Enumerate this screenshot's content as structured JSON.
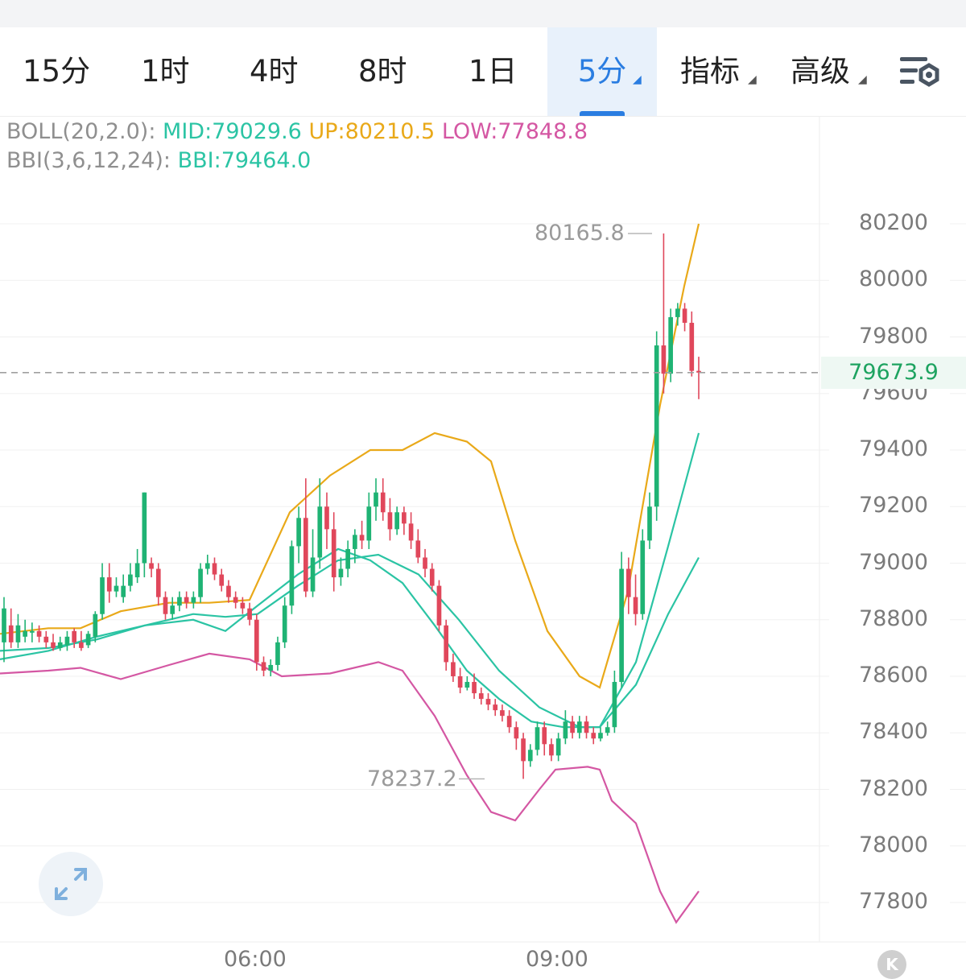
{
  "tabs": [
    {
      "label": "15分",
      "selected": false
    },
    {
      "label": "1时",
      "selected": false
    },
    {
      "label": "4时",
      "selected": false
    },
    {
      "label": "8时",
      "selected": false
    },
    {
      "label": "1日",
      "selected": false
    },
    {
      "label": "5分",
      "selected": true,
      "dropdown": true
    },
    {
      "label": "指标",
      "selected": false,
      "dropdown": true
    },
    {
      "label": "高级",
      "selected": false,
      "dropdown": true
    }
  ],
  "settings_icon": "chart-settings-icon",
  "legend": {
    "boll_name": "BOLL(20,2.0):",
    "mid": "MID:79029.6",
    "up": "UP:80210.5",
    "low": "LOW:77848.8",
    "bbi_name": "BBI(3,6,12,24):",
    "bbi": "BBI:79464.0"
  },
  "colors": {
    "up_candle": "#1fb374",
    "down_candle": "#e0475b",
    "boll_mid": "#2bc4a4",
    "boll_up": "#e9a919",
    "boll_low": "#d457a3",
    "bbi": "#2bc4a4",
    "accent": "#2a7de1"
  },
  "current_price": "79673.9",
  "high_marker": "80165.8",
  "low_marker": "78237.2",
  "chart_data": {
    "type": "candlestick",
    "interval": "5分",
    "y_ticks": [
      "80200",
      "80000",
      "79800",
      "79600",
      "79400",
      "79200",
      "79000",
      "78800",
      "78600",
      "78400",
      "78200",
      "78000",
      "77800"
    ],
    "ylim": [
      77670,
      80440
    ],
    "x_ticks": [
      "06:00",
      "09:00"
    ],
    "grid": true,
    "candles": [
      [
        78720,
        78840,
        78650,
        78880
      ],
      [
        78780,
        78720,
        78700,
        78840
      ],
      [
        78720,
        78780,
        78700,
        78820
      ],
      [
        78740,
        78760,
        78720,
        78800
      ],
      [
        78760,
        78760,
        78720,
        78790
      ],
      [
        78760,
        78740,
        78720,
        78780
      ],
      [
        78740,
        78720,
        78700,
        78760
      ],
      [
        78720,
        78700,
        78690,
        78750
      ],
      [
        78700,
        78720,
        78690,
        78740
      ],
      [
        78710,
        78740,
        78690,
        78760
      ],
      [
        78760,
        78720,
        78700,
        78770
      ],
      [
        78720,
        78700,
        78690,
        78760
      ],
      [
        78710,
        78750,
        78700,
        78760
      ],
      [
        78740,
        78820,
        78720,
        78830
      ],
      [
        78820,
        78950,
        78800,
        79000
      ],
      [
        78950,
        78900,
        78860,
        79000
      ],
      [
        78900,
        78920,
        78880,
        78950
      ],
      [
        78880,
        78920,
        78860,
        78960
      ],
      [
        78920,
        78960,
        78900,
        79000
      ],
      [
        78950,
        79000,
        78930,
        79050
      ],
      [
        79000,
        79250,
        78950,
        79250
      ],
      [
        79000,
        78980,
        78950,
        79020
      ],
      [
        78980,
        78880,
        78850,
        79000
      ],
      [
        78880,
        78820,
        78800,
        78900
      ],
      [
        78820,
        78850,
        78800,
        78880
      ],
      [
        78850,
        78880,
        78830,
        78900
      ],
      [
        78880,
        78860,
        78840,
        78900
      ],
      [
        78860,
        78880,
        78840,
        78900
      ],
      [
        78880,
        78980,
        78860,
        79000
      ],
      [
        78980,
        79000,
        78960,
        79030
      ],
      [
        79000,
        78960,
        78940,
        79020
      ],
      [
        78960,
        78920,
        78900,
        78980
      ],
      [
        78920,
        78880,
        78860,
        78940
      ],
      [
        78880,
        78860,
        78840,
        78900
      ],
      [
        78860,
        78840,
        78820,
        78880
      ],
      [
        78840,
        78800,
        78780,
        78860
      ],
      [
        78800,
        78650,
        78620,
        78820
      ],
      [
        78650,
        78620,
        78600,
        78670
      ],
      [
        78620,
        78640,
        78600,
        78660
      ],
      [
        78640,
        78720,
        78620,
        78740
      ],
      [
        78720,
        78850,
        78700,
        78880
      ],
      [
        78850,
        79060,
        78820,
        79080
      ],
      [
        79060,
        79160,
        79000,
        79200
      ],
      [
        79160,
        78900,
        78880,
        79300
      ],
      [
        78900,
        79020,
        78880,
        79120
      ],
      [
        79020,
        79200,
        78980,
        79300
      ],
      [
        79200,
        79120,
        79050,
        79250
      ],
      [
        79120,
        78950,
        78900,
        79180
      ],
      [
        78950,
        78980,
        78920,
        79020
      ],
      [
        78980,
        79050,
        78950,
        79080
      ],
      [
        79050,
        79100,
        79000,
        79120
      ],
      [
        79100,
        79080,
        79050,
        79150
      ],
      [
        79080,
        79200,
        79050,
        79250
      ],
      [
        79200,
        79250,
        79150,
        79300
      ],
      [
        79250,
        79180,
        79150,
        79300
      ],
      [
        79180,
        79120,
        79080,
        79230
      ],
      [
        79120,
        79180,
        79100,
        79200
      ],
      [
        79180,
        79140,
        79100,
        79200
      ],
      [
        79140,
        79080,
        79050,
        79180
      ],
      [
        79080,
        79020,
        79000,
        79120
      ],
      [
        79020,
        78980,
        78950,
        79050
      ],
      [
        78980,
        78920,
        78900,
        79000
      ],
      [
        78920,
        78780,
        78760,
        78940
      ],
      [
        78780,
        78650,
        78620,
        78800
      ],
      [
        78650,
        78600,
        78580,
        78680
      ],
      [
        78600,
        78560,
        78540,
        78630
      ],
      [
        78560,
        78580,
        78550,
        78600
      ],
      [
        78580,
        78540,
        78520,
        78610
      ],
      [
        78540,
        78520,
        78500,
        78560
      ],
      [
        78520,
        78500,
        78480,
        78540
      ],
      [
        78500,
        78480,
        78460,
        78520
      ],
      [
        78480,
        78460,
        78440,
        78500
      ],
      [
        78460,
        78420,
        78400,
        78480
      ],
      [
        78420,
        78380,
        78340,
        78440
      ],
      [
        78380,
        78300,
        78237.2,
        78400
      ],
      [
        78300,
        78340,
        78280,
        78360
      ],
      [
        78340,
        78420,
        78320,
        78440
      ],
      [
        78420,
        78360,
        78320,
        78440
      ],
      [
        78360,
        78320,
        78300,
        78380
      ],
      [
        78320,
        78380,
        78300,
        78400
      ],
      [
        78380,
        78440,
        78360,
        78480
      ],
      [
        78440,
        78400,
        78380,
        78460
      ],
      [
        78400,
        78440,
        78380,
        78460
      ],
      [
        78440,
        78400,
        78380,
        78460
      ],
      [
        78400,
        78380,
        78360,
        78420
      ],
      [
        78380,
        78400,
        78370,
        78420
      ],
      [
        78400,
        78420,
        78390,
        78440
      ],
      [
        78420,
        78580,
        78400,
        78620
      ],
      [
        78580,
        78980,
        78560,
        79040
      ],
      [
        78980,
        78880,
        78820,
        79020
      ],
      [
        78880,
        78820,
        78780,
        78960
      ],
      [
        78820,
        79080,
        78800,
        79120
      ],
      [
        79080,
        79200,
        79050,
        79250
      ],
      [
        79200,
        79770,
        79150,
        79820
      ],
      [
        79770,
        79670,
        79600,
        80165.8
      ],
      [
        79670,
        79870,
        79640,
        79900
      ],
      [
        79870,
        79900,
        79840,
        79920
      ],
      [
        79900,
        79850,
        79820,
        79920
      ],
      [
        79850,
        79680,
        79660,
        79890
      ],
      [
        79680,
        79673.9,
        79580,
        79730
      ]
    ],
    "series": [
      {
        "name": "MID",
        "color": "#2bc4a4",
        "y_start": 78720,
        "y_end": 79029.6
      },
      {
        "name": "UP",
        "color": "#e9a919",
        "y_start": 78780,
        "y_end": 80210.5
      },
      {
        "name": "LOW",
        "color": "#d457a3",
        "y_start": 78640,
        "y_end": 77848.8
      },
      {
        "name": "BBI",
        "color": "#2bc4a4",
        "y_start": 78680,
        "y_end": 79464.0
      }
    ]
  }
}
